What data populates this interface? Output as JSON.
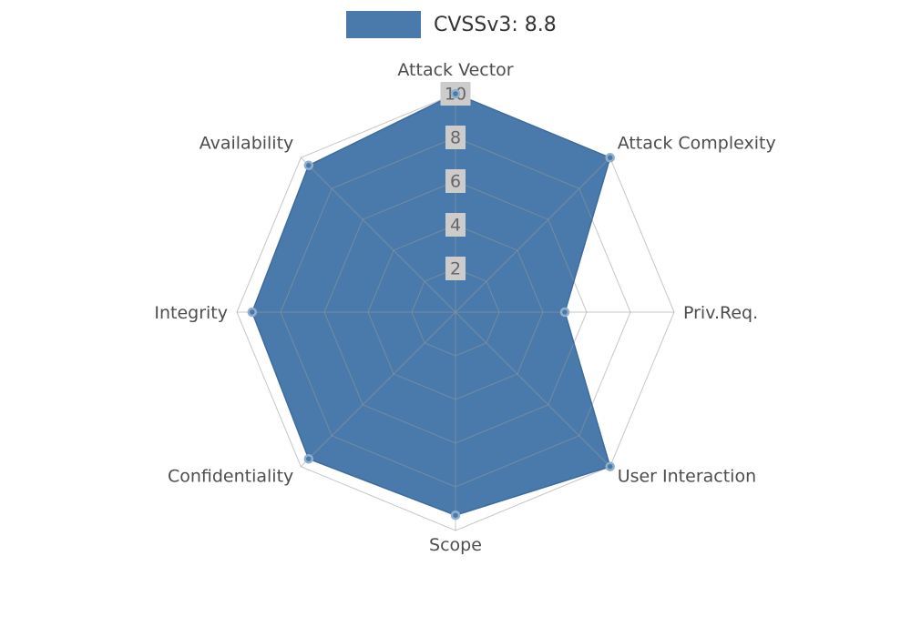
{
  "legend": {
    "label": "CVSSv3: 8.8"
  },
  "chart_data": {
    "type": "radar",
    "title": "CVSSv3: 8.8",
    "categories": [
      "Attack Vector",
      "Attack Complexity",
      "Priv.Req.",
      "User Interaction",
      "Scope",
      "Confidentiality",
      "Integrity",
      "Availability"
    ],
    "series": [
      {
        "name": "CVSSv3: 8.8",
        "values": [
          10,
          10,
          5,
          10,
          9.3,
          9.5,
          9.3,
          9.5
        ]
      }
    ],
    "ticks": [
      2,
      4,
      6,
      8,
      10
    ],
    "rmin": 0,
    "rmax": 10,
    "start_angle_deg": -90,
    "direction": "clockwise",
    "grid": true,
    "legend_position": "top",
    "colors": {
      "fill": "#4a7aab",
      "stroke": "#3d6c9c",
      "marker": "#4a7aab",
      "marker_ring": "#8fb0cc",
      "grid": "#999999",
      "axis_label": "#4d4d4d",
      "tick_label": "#666666",
      "tick_label_bg": "#cccccc",
      "legend_text": "#333333"
    }
  }
}
